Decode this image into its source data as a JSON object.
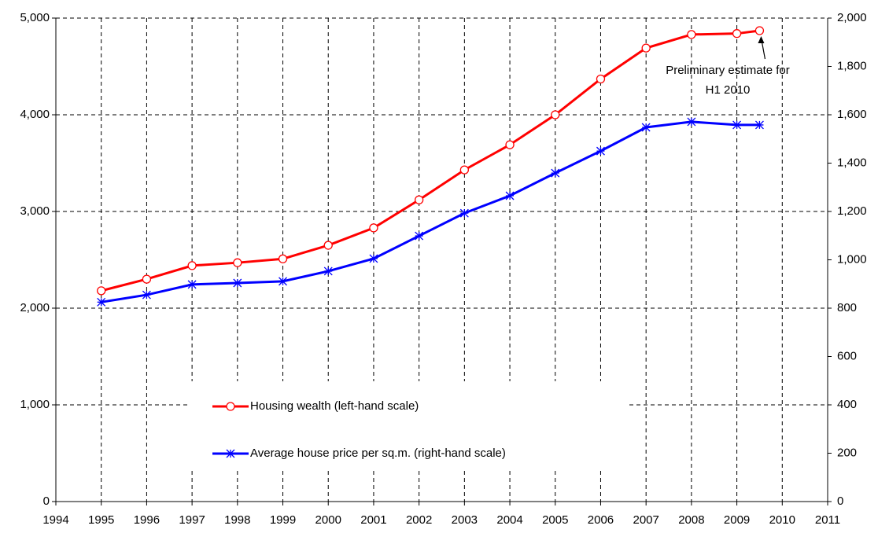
{
  "chart_data": {
    "type": "line",
    "annotation": [
      "Preliminary estimate for",
      "H1 2010"
    ],
    "x": [
      1995,
      1996,
      1997,
      1998,
      1999,
      2000,
      2001,
      2002,
      2003,
      2004,
      2005,
      2006,
      2007,
      2008,
      2009,
      2009.5
    ],
    "xlim": [
      1994,
      2011
    ],
    "xticks": [
      1994,
      1995,
      1996,
      1997,
      1998,
      1999,
      2000,
      2001,
      2002,
      2003,
      2004,
      2005,
      2006,
      2007,
      2008,
      2009,
      2010,
      2011
    ],
    "ylim": [
      0,
      5000
    ],
    "yticks": [
      0,
      {
        "value": 1000,
        "label": "1,000"
      },
      {
        "value": 2000,
        "label": "2,000"
      },
      {
        "value": 3000,
        "label": "3,000"
      },
      {
        "value": 4000,
        "label": "4,000"
      },
      {
        "value": 5000,
        "label": "5,000"
      }
    ],
    "y2lim": [
      0,
      2000
    ],
    "y2ticks": [
      0,
      200,
      400,
      600,
      800,
      {
        "value": 1000,
        "label": "1,000"
      },
      {
        "value": 1200,
        "label": "1,200"
      },
      {
        "value": 1400,
        "label": "1,400"
      },
      {
        "value": 1600,
        "label": "1,600"
      },
      {
        "value": 1800,
        "label": "1,800"
      },
      {
        "value": 2000,
        "label": "2,000"
      }
    ],
    "grid": true,
    "legend_loc": "lower center",
    "series": [
      {
        "name": "Housing wealth (left-hand scale)",
        "color": "#ff0000",
        "marker": "circle",
        "values": [
          2180,
          2300,
          2440,
          2470,
          2510,
          2650,
          2830,
          3120,
          3430,
          3690,
          4000,
          4370,
          4690,
          4830,
          4840,
          4870
        ]
      },
      {
        "name": "Average house price per sq.m. (right-hand scale)",
        "color": "#0000ff",
        "marker": "star",
        "axis": "y2",
        "values": [
          825,
          855,
          898,
          904,
          911,
          953,
          1005,
          1099,
          1193,
          1265,
          1359,
          1450,
          1548,
          1571,
          1558,
          1558
        ]
      }
    ]
  }
}
